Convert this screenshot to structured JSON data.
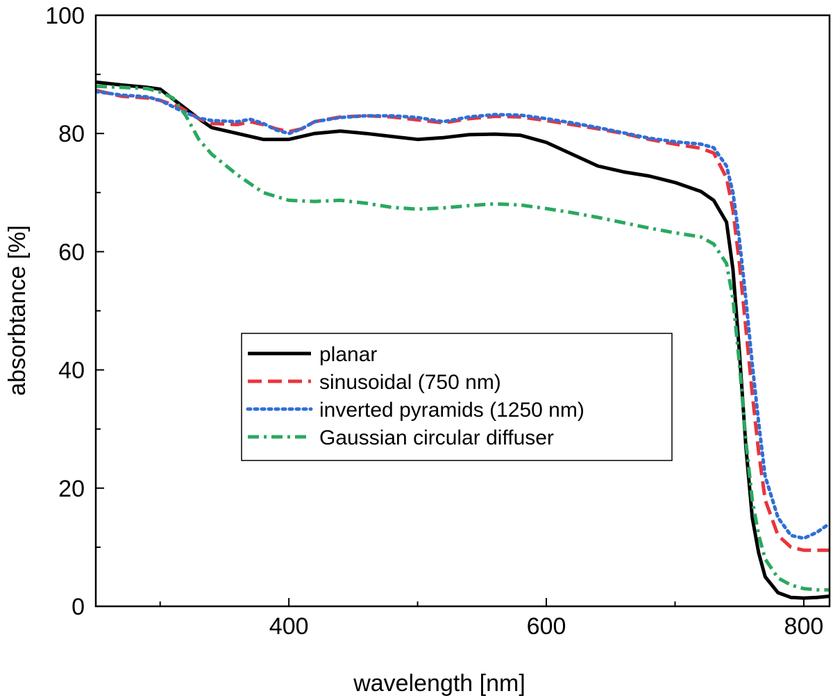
{
  "chart_data": {
    "type": "line",
    "title": "",
    "xlabel": "wavelength [nm]",
    "ylabel": "absorbtance [%]",
    "xlim": [
      250,
      820
    ],
    "ylim": [
      0,
      100
    ],
    "x_ticks": [
      400,
      600,
      800
    ],
    "x_minor_ticks": [
      300,
      500,
      700
    ],
    "y_ticks": [
      0,
      20,
      40,
      60,
      80,
      100
    ],
    "grid": false,
    "legend_position": "center",
    "series": [
      {
        "name": "planar",
        "color": "#000000",
        "dash": "solid",
        "points": [
          [
            250,
            88.7
          ],
          [
            270,
            88.2
          ],
          [
            290,
            87.8
          ],
          [
            300,
            87.5
          ],
          [
            315,
            85
          ],
          [
            330,
            82.5
          ],
          [
            340,
            81
          ],
          [
            360,
            80
          ],
          [
            380,
            79
          ],
          [
            400,
            79
          ],
          [
            420,
            80
          ],
          [
            440,
            80.4
          ],
          [
            460,
            80
          ],
          [
            480,
            79.5
          ],
          [
            500,
            79
          ],
          [
            520,
            79.3
          ],
          [
            540,
            79.8
          ],
          [
            560,
            79.9
          ],
          [
            580,
            79.7
          ],
          [
            600,
            78.5
          ],
          [
            620,
            76.5
          ],
          [
            640,
            74.5
          ],
          [
            660,
            73.5
          ],
          [
            680,
            72.8
          ],
          [
            700,
            71.7
          ],
          [
            720,
            70.2
          ],
          [
            730,
            68.7
          ],
          [
            740,
            65
          ],
          [
            745,
            57
          ],
          [
            750,
            43
          ],
          [
            755,
            27
          ],
          [
            760,
            15
          ],
          [
            765,
            9
          ],
          [
            770,
            5
          ],
          [
            780,
            2.3
          ],
          [
            790,
            1.5
          ],
          [
            800,
            1.4
          ],
          [
            810,
            1.5
          ],
          [
            820,
            1.7
          ]
        ]
      },
      {
        "name": "sinusoidal (750 nm)",
        "color": "#e8353d",
        "dash": "dashed",
        "points": [
          [
            250,
            87.3
          ],
          [
            270,
            86.3
          ],
          [
            290,
            86
          ],
          [
            300,
            85.6
          ],
          [
            315,
            84.5
          ],
          [
            330,
            82.5
          ],
          [
            340,
            81.7
          ],
          [
            360,
            81.5
          ],
          [
            370,
            82
          ],
          [
            380,
            81.5
          ],
          [
            390,
            80.8
          ],
          [
            400,
            80.3
          ],
          [
            410,
            80.8
          ],
          [
            420,
            82
          ],
          [
            440,
            82.8
          ],
          [
            460,
            83
          ],
          [
            480,
            82.8
          ],
          [
            500,
            82.3
          ],
          [
            520,
            81.8
          ],
          [
            540,
            82.5
          ],
          [
            560,
            82.9
          ],
          [
            580,
            82.8
          ],
          [
            600,
            82.2
          ],
          [
            620,
            81.5
          ],
          [
            640,
            80.8
          ],
          [
            660,
            80
          ],
          [
            680,
            79
          ],
          [
            700,
            78.2
          ],
          [
            720,
            77.5
          ],
          [
            730,
            76.7
          ],
          [
            740,
            72.5
          ],
          [
            745,
            67
          ],
          [
            750,
            58
          ],
          [
            755,
            47
          ],
          [
            760,
            36
          ],
          [
            765,
            26
          ],
          [
            770,
            18
          ],
          [
            780,
            12
          ],
          [
            790,
            10
          ],
          [
            800,
            9.5
          ],
          [
            810,
            9.5
          ],
          [
            820,
            9.5
          ]
        ]
      },
      {
        "name": "inverted pyramids (1250 nm)",
        "color": "#2f6fd6",
        "dash": "dotted",
        "points": [
          [
            250,
            87.1
          ],
          [
            270,
            86.5
          ],
          [
            290,
            86.2
          ],
          [
            300,
            85.6
          ],
          [
            315,
            84
          ],
          [
            330,
            82.6
          ],
          [
            340,
            82.2
          ],
          [
            360,
            82
          ],
          [
            370,
            82.4
          ],
          [
            380,
            81.7
          ],
          [
            390,
            80.6
          ],
          [
            400,
            80
          ],
          [
            410,
            80.8
          ],
          [
            420,
            82
          ],
          [
            440,
            82.7
          ],
          [
            460,
            83
          ],
          [
            480,
            83
          ],
          [
            500,
            82.7
          ],
          [
            520,
            82
          ],
          [
            540,
            82.8
          ],
          [
            560,
            83.2
          ],
          [
            580,
            83.1
          ],
          [
            600,
            82.5
          ],
          [
            620,
            81.8
          ],
          [
            640,
            81
          ],
          [
            660,
            80.1
          ],
          [
            680,
            79.2
          ],
          [
            700,
            78.6
          ],
          [
            720,
            78.2
          ],
          [
            730,
            77.6
          ],
          [
            740,
            74.5
          ],
          [
            745,
            70
          ],
          [
            750,
            62
          ],
          [
            755,
            52
          ],
          [
            760,
            41
          ],
          [
            765,
            31
          ],
          [
            770,
            22
          ],
          [
            780,
            15
          ],
          [
            790,
            12
          ],
          [
            800,
            11.5
          ],
          [
            810,
            12.5
          ],
          [
            820,
            14
          ]
        ]
      },
      {
        "name": "Gaussian circular diffuser",
        "color": "#2aa860",
        "dash": "dashdot",
        "points": [
          [
            250,
            88
          ],
          [
            270,
            87.8
          ],
          [
            290,
            87.6
          ],
          [
            300,
            87
          ],
          [
            310,
            86
          ],
          [
            320,
            83
          ],
          [
            330,
            79
          ],
          [
            340,
            76.5
          ],
          [
            360,
            73
          ],
          [
            380,
            70
          ],
          [
            400,
            68.7
          ],
          [
            420,
            68.5
          ],
          [
            440,
            68.7
          ],
          [
            460,
            68.2
          ],
          [
            480,
            67.5
          ],
          [
            500,
            67.2
          ],
          [
            520,
            67.4
          ],
          [
            540,
            67.8
          ],
          [
            560,
            68.1
          ],
          [
            580,
            67.9
          ],
          [
            600,
            67.3
          ],
          [
            620,
            66.6
          ],
          [
            640,
            65.8
          ],
          [
            660,
            64.9
          ],
          [
            680,
            64
          ],
          [
            700,
            63.2
          ],
          [
            720,
            62.5
          ],
          [
            730,
            61.3
          ],
          [
            740,
            58
          ],
          [
            745,
            52
          ],
          [
            750,
            41
          ],
          [
            755,
            28
          ],
          [
            760,
            18
          ],
          [
            765,
            12
          ],
          [
            770,
            8
          ],
          [
            780,
            4.8
          ],
          [
            790,
            3.6
          ],
          [
            800,
            3
          ],
          [
            810,
            2.8
          ],
          [
            820,
            2.8
          ]
        ]
      }
    ]
  }
}
